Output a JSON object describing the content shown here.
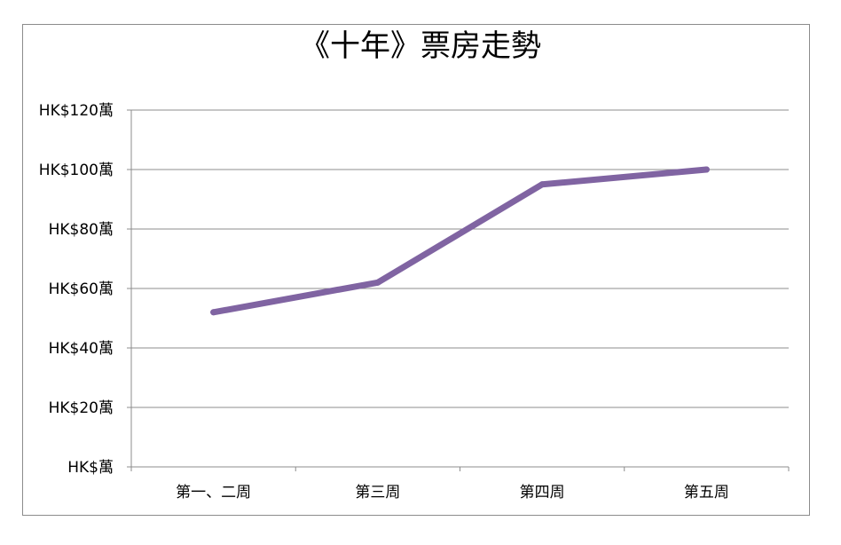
{
  "chart_data": {
    "type": "line",
    "title": "《十年》票房走勢",
    "categories": [
      "第一、二周",
      "第三周",
      "第四周",
      "第五周"
    ],
    "series": [
      {
        "values": [
          52,
          62,
          95,
          100
        ],
        "color": "#8064a2"
      }
    ],
    "ylim": [
      0,
      120
    ],
    "yticks": [
      0,
      20,
      40,
      60,
      80,
      100,
      120
    ],
    "ytick_labels": [
      "HK$萬",
      "HK$20萬",
      "HK$40萬",
      "HK$60萬",
      "HK$80萬",
      "HK$100萬",
      "HK$120萬"
    ],
    "grid": true,
    "legend": "none"
  }
}
